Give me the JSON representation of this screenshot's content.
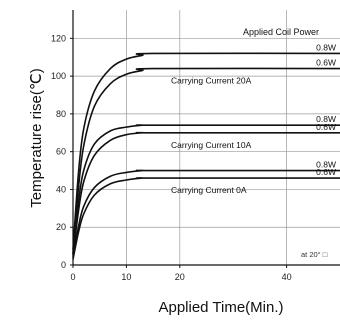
{
  "chart_data": {
    "type": "line",
    "xlabel": "Applied Time(Min.)",
    "ylabel": "Temperature rise(℃)",
    "xlim": [
      0,
      50
    ],
    "ylim": [
      0,
      135
    ],
    "x_ticks": [
      0,
      10,
      20,
      40
    ],
    "y_ticks": [
      0,
      20,
      40,
      60,
      80,
      100,
      120
    ],
    "grid": true,
    "legend_title": "Applied Coil Power",
    "note": "at 20° □",
    "groups": [
      {
        "label": "Carrying Current  20A",
        "series": [
          {
            "name": "0.8W",
            "x": [
              0,
              1,
              2,
              4,
              7,
              10,
              13,
              15,
              50
            ],
            "y": [
              8,
              48,
              72,
              92,
              104,
              109,
              111,
              112,
              112
            ]
          },
          {
            "name": "0.6W",
            "x": [
              0,
              1,
              2,
              4,
              7,
              10,
              13,
              15,
              50
            ],
            "y": [
              6,
              40,
              63,
              84,
              96,
              101,
              103,
              104,
              104
            ]
          }
        ]
      },
      {
        "label": "Carrying Current  10A",
        "series": [
          {
            "name": "0.8W",
            "x": [
              0,
              1,
              2,
              4,
              7,
              10,
              13,
              15,
              50
            ],
            "y": [
              6,
              33,
              50,
              64,
              71,
              73,
              74,
              74,
              74
            ]
          },
          {
            "name": "0.6W",
            "x": [
              0,
              1,
              2,
              4,
              7,
              10,
              13,
              15,
              50
            ],
            "y": [
              5,
              28,
              44,
              58,
              66,
              69,
              70,
              70,
              70
            ]
          }
        ]
      },
      {
        "label": "Carrying Current  0A",
        "series": [
          {
            "name": "0.8W",
            "x": [
              0,
              1,
              2,
              4,
              7,
              10,
              13,
              15,
              50
            ],
            "y": [
              4,
              20,
              31,
              41,
              47,
              49,
              50,
              50,
              50
            ]
          },
          {
            "name": "0.6W",
            "x": [
              0,
              1,
              2,
              4,
              7,
              10,
              13,
              15,
              50
            ],
            "y": [
              3,
              17,
              27,
              37,
              43,
              45,
              46,
              46,
              46
            ]
          }
        ]
      }
    ],
    "colors": {
      "line": "#111111",
      "grid": "#9a9a9a",
      "axis": "#111111"
    }
  }
}
